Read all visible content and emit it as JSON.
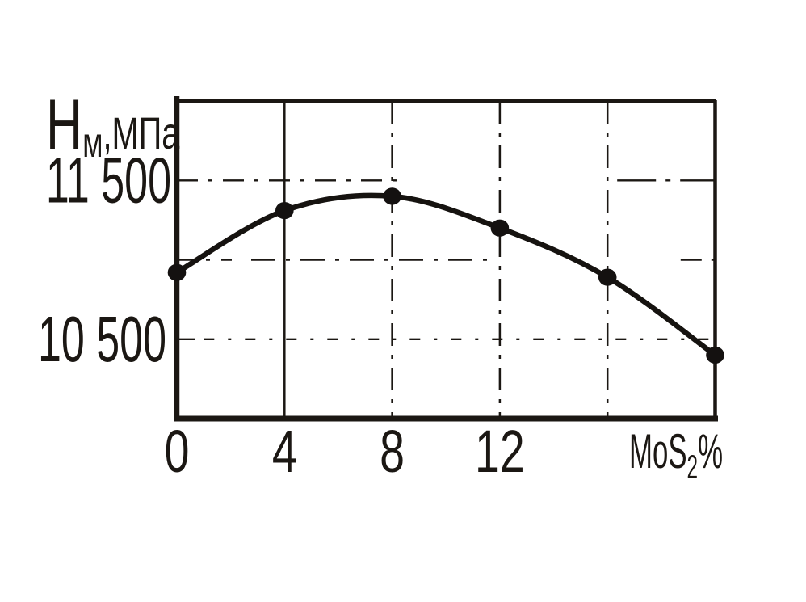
{
  "figure": {
    "description": "Scanned hand-drawn line chart of microhardness versus MoS2 content",
    "background_color": "#ffffff",
    "ink_color": "#1b1713"
  },
  "chart_data": {
    "type": "line",
    "title": "",
    "ylabel": "Нм, МПа",
    "ylabel_parts": {
      "main": "Н",
      "sub": "м",
      "rest": ",МПа"
    },
    "xlabel": "MoS₂%",
    "xlabel_parts": {
      "main": "MoS",
      "sub": "2",
      "rest": "%"
    },
    "series": [
      {
        "name": "microhardness",
        "x": [
          0,
          4,
          8,
          12,
          16,
          20
        ],
        "values": [
          10920,
          11310,
          11400,
          11200,
          10890,
          10400
        ]
      }
    ],
    "xlim": [
      0,
      20
    ],
    "ylim": [
      10000,
      12000
    ],
    "x_tick_labels": [
      {
        "value": 0,
        "label": "0"
      },
      {
        "value": 4,
        "label": "4"
      },
      {
        "value": 8,
        "label": "8"
      },
      {
        "value": 12,
        "label": "12"
      }
    ],
    "y_tick_labels": [
      {
        "value": 11500,
        "label": "11 500"
      },
      {
        "value": 10500,
        "label": "10 500"
      }
    ],
    "x_gridline_values": [
      4,
      8,
      12,
      16
    ],
    "y_gridline_values": [
      11500,
      11000,
      10500
    ],
    "grid": true,
    "legend_position": "none",
    "marker": "filled-circle"
  }
}
